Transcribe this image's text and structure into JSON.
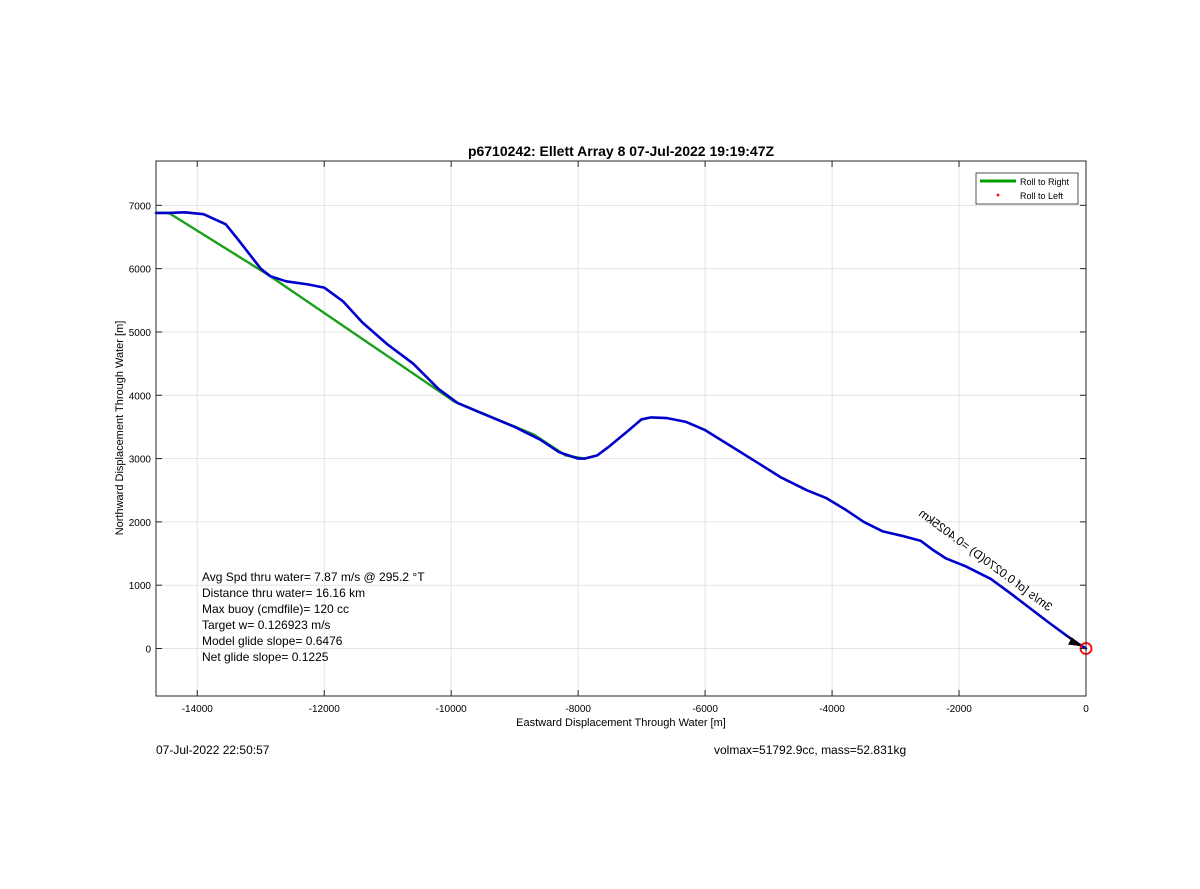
{
  "chart_data": {
    "type": "line",
    "title": "p6710242: Ellett Array 8 07-Jul-2022 19:19:47Z",
    "xlabel": "Eastward Displacement Through Water [m]",
    "ylabel": "Northward Displacement Through Water [m]",
    "xlim": [
      -14650,
      0
    ],
    "ylim": [
      -750,
      7700
    ],
    "xticks": [
      -14000,
      -12000,
      -10000,
      -8000,
      -6000,
      -4000,
      -2000,
      0
    ],
    "yticks": [
      0,
      1000,
      2000,
      3000,
      4000,
      5000,
      6000,
      7000
    ],
    "grid": true,
    "legend_position": "top-right",
    "legend": [
      {
        "label": "Roll to Right",
        "color": "#00a000",
        "style": "line"
      },
      {
        "label": "Roll to Left",
        "color": "#ff0000",
        "style": "dot"
      }
    ],
    "series": [
      {
        "name": "Roll to Right",
        "color": "#1aa01a",
        "x": [
          -14650,
          -14450,
          -12850,
          -9950,
          -8700,
          -8200,
          -7900
        ],
        "y": [
          6880,
          6880,
          5880,
          3900,
          3380,
          3050,
          3000
        ]
      },
      {
        "color": "#0000cc",
        "x": [
          -14650,
          -14450,
          -14200,
          -13900,
          -13550,
          -13350,
          -13000,
          -12850,
          -12600,
          -12250,
          -12000,
          -11700,
          -11400,
          -11000,
          -10600,
          -10200,
          -9900,
          -9600,
          -9000,
          -8600,
          -8300,
          -8000,
          -7900,
          -7700,
          -7500,
          -7200,
          -7000,
          -6850,
          -6600,
          -6300,
          -6000,
          -5600,
          -5200,
          -4800,
          -4400,
          -4100,
          -3800,
          -3500,
          -3200,
          -2900,
          -2600,
          -2400,
          -2200,
          -1900,
          -1500,
          -1200,
          -900,
          -600,
          -300,
          -100,
          0
        ],
        "y": [
          6880,
          6880,
          6890,
          6860,
          6700,
          6450,
          6000,
          5880,
          5800,
          5750,
          5700,
          5480,
          5150,
          4800,
          4500,
          4100,
          3880,
          3750,
          3500,
          3300,
          3100,
          3000,
          3000,
          3050,
          3200,
          3450,
          3620,
          3650,
          3640,
          3580,
          3450,
          3200,
          2950,
          2700,
          2500,
          2380,
          2200,
          2000,
          1850,
          1780,
          1700,
          1550,
          1420,
          1300,
          1100,
          880,
          650,
          420,
          200,
          60,
          0
        ]
      }
    ],
    "markers": [
      {
        "type": "circle",
        "x": 0,
        "y": 0,
        "color": "#ff0000"
      }
    ],
    "annotations": {
      "rotated_label": "3m/s [of 0.0270(D) =0.4025km",
      "stats": [
        "Avg Spd thru water=  7.87 m/s @ 295.2 °T",
        "Distance thru water= 16.16 km",
        "Max buoy (cmdfile)= 120 cc",
        "Target w= 0.126923 m/s",
        "Model glide slope= 0.6476",
        "Net glide slope= 0.1225"
      ]
    }
  },
  "footer": {
    "left": "07-Jul-2022 22:50:57",
    "right": "volmax=51792.9cc, mass=52.831kg"
  }
}
